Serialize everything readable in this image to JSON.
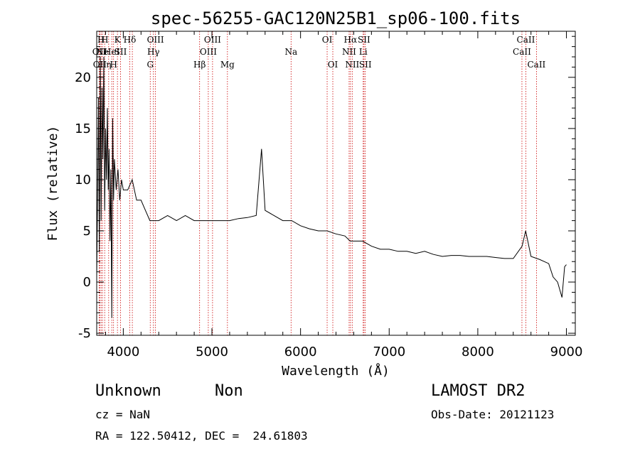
{
  "chart_data": {
    "type": "line",
    "title": "spec-56255-GAC120N25B1_sp06-100.fits",
    "xlabel": "Wavelength (Å)",
    "ylabel": "Flux (relative)",
    "xlim": [
      3700,
      9100
    ],
    "ylim": [
      -5.2,
      24.5
    ],
    "x_ticks": [
      "4000",
      "5000",
      "6000",
      "7000",
      "8000",
      "9000"
    ],
    "y_ticks": [
      "-5",
      "0",
      "5",
      "10",
      "15",
      "20"
    ],
    "x_tick_values": [
      4000,
      5000,
      6000,
      7000,
      8000,
      9000
    ],
    "y_tick_values": [
      -5,
      0,
      5,
      10,
      15,
      20
    ],
    "line_color": "#000000",
    "marker_color": "#cc0000",
    "spectrum": {
      "x": [
        3700,
        3710,
        3720,
        3730,
        3740,
        3750,
        3760,
        3770,
        3780,
        3790,
        3800,
        3810,
        3820,
        3830,
        3840,
        3850,
        3860,
        3870,
        3880,
        3890,
        3900,
        3920,
        3940,
        3960,
        3980,
        4000,
        4050,
        4100,
        4150,
        4200,
        4250,
        4300,
        4350,
        4400,
        4500,
        4600,
        4700,
        4800,
        4900,
        5000,
        5100,
        5200,
        5300,
        5400,
        5500,
        5560,
        5600,
        5700,
        5800,
        5900,
        6000,
        6100,
        6200,
        6300,
        6400,
        6500,
        6560,
        6600,
        6700,
        6800,
        6900,
        7000,
        7100,
        7200,
        7300,
        7400,
        7500,
        7600,
        7700,
        7800,
        7900,
        8000,
        8100,
        8200,
        8300,
        8400,
        8500,
        8540,
        8600,
        8700,
        8800,
        8850,
        8900,
        8950,
        8980,
        9000
      ],
      "y": [
        0.5,
        8,
        18,
        3,
        22,
        6,
        19,
        12,
        22,
        7,
        15,
        10,
        17,
        9,
        13,
        4,
        11,
        -3.5,
        16,
        8,
        12,
        9,
        11,
        8,
        10,
        9,
        9,
        10,
        8,
        8,
        7,
        6,
        6,
        6,
        6.5,
        6,
        6.5,
        6,
        6,
        6,
        6,
        6,
        6.2,
        6.3,
        6.5,
        13,
        7,
        6.5,
        6,
        6,
        5.5,
        5.2,
        5,
        5,
        4.7,
        4.5,
        4,
        4,
        4,
        3.5,
        3.2,
        3.2,
        3,
        3,
        2.8,
        3,
        2.7,
        2.5,
        2.6,
        2.6,
        2.5,
        2.5,
        2.5,
        2.4,
        2.3,
        2.3,
        3.5,
        5,
        2.5,
        2.2,
        1.8,
        0.5,
        0,
        -1.5,
        1.5,
        1.7
      ]
    },
    "lines": [
      {
        "wl": 3727,
        "row": 1,
        "label": "OII"
      },
      {
        "wl": 3735,
        "row": 2,
        "label": "OII"
      },
      {
        "wl": 3750,
        "row": 0,
        "label": "H"
      },
      {
        "wl": 3765,
        "row": 1,
        "label": "Ne"
      },
      {
        "wl": 3790,
        "row": 0,
        "label": "H"
      },
      {
        "wl": 3835,
        "row": 2,
        "label": "η"
      },
      {
        "wl": 3870,
        "row": 1,
        "label": "HeI"
      },
      {
        "wl": 3890,
        "row": 2,
        "label": "H"
      },
      {
        "wl": 3934,
        "row": 0,
        "label": "K"
      },
      {
        "wl": 3969,
        "row": 1,
        "label": "SII"
      },
      {
        "wl": 4073,
        "row": 0,
        "label": "Hδ"
      },
      {
        "wl": 4102,
        "row": 0,
        "label": ""
      },
      {
        "wl": 4304,
        "row": 2,
        "label": "G"
      },
      {
        "wl": 4340,
        "row": 1,
        "label": "Hγ"
      },
      {
        "wl": 4363,
        "row": 0,
        "label": "OIII"
      },
      {
        "wl": 4861,
        "row": 2,
        "label": "Hβ"
      },
      {
        "wl": 4959,
        "row": 1,
        "label": "OIII"
      },
      {
        "wl": 5007,
        "row": 0,
        "label": "OIII"
      },
      {
        "wl": 5175,
        "row": 2,
        "label": "Mg"
      },
      {
        "wl": 5893,
        "row": 1,
        "label": "Na"
      },
      {
        "wl": 6300,
        "row": 0,
        "label": "OI"
      },
      {
        "wl": 6364,
        "row": 2,
        "label": "OI"
      },
      {
        "wl": 6548,
        "row": 1,
        "label": "NII"
      },
      {
        "wl": 6563,
        "row": 0,
        "label": "Hα"
      },
      {
        "wl": 6583,
        "row": 2,
        "label": "NII"
      },
      {
        "wl": 6707,
        "row": 1,
        "label": "Li"
      },
      {
        "wl": 6716,
        "row": 0,
        "label": "SII"
      },
      {
        "wl": 6731,
        "row": 2,
        "label": "SII"
      },
      {
        "wl": 8498,
        "row": 1,
        "label": "CaII"
      },
      {
        "wl": 8542,
        "row": 0,
        "label": "CaII"
      },
      {
        "wl": 8662,
        "row": 2,
        "label": "CaII"
      }
    ]
  },
  "info": {
    "class": "Unknown",
    "subclass": "Non",
    "survey": "LAMOST DR2",
    "cz": "cz = NaN",
    "obs_date": "Obs-Date: 20121123",
    "radec": "RA = 122.50412, DEC =  24.61803"
  }
}
